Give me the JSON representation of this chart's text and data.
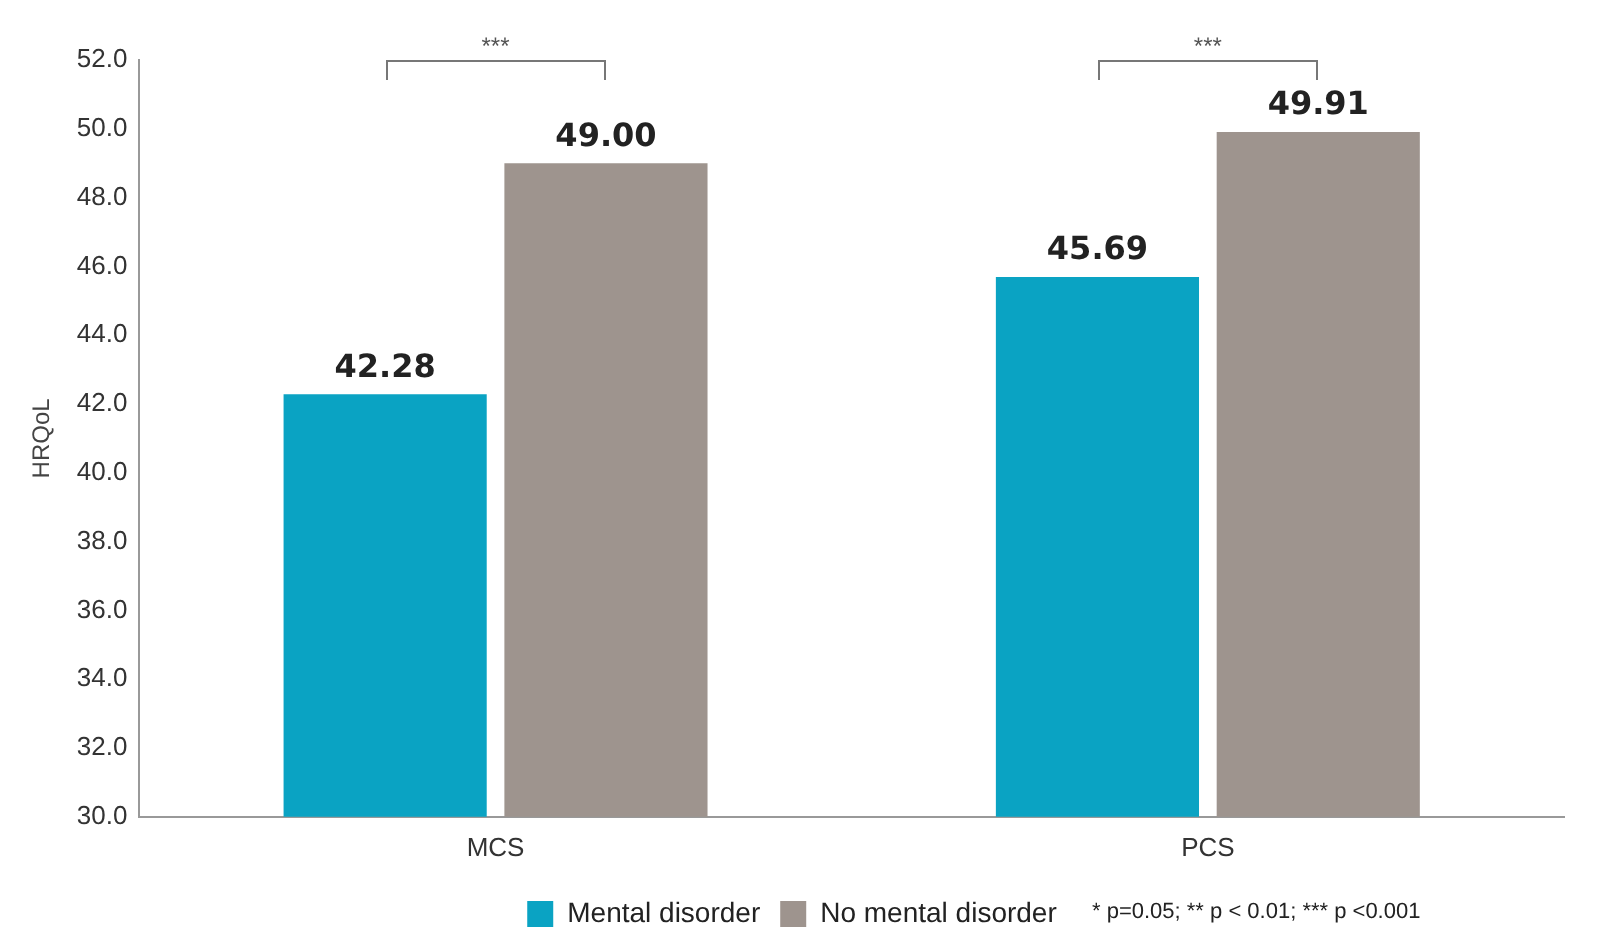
{
  "chart_data": {
    "type": "bar",
    "ylabel": "HRQoL",
    "categories": [
      "MCS",
      "PCS"
    ],
    "series": [
      {
        "name": "Mental disorder",
        "color": "#0aa3c3",
        "values": [
          42.28,
          45.69
        ],
        "value_labels": [
          "42.28",
          "45.69"
        ]
      },
      {
        "name": "No mental disorder",
        "color": "#9e948e",
        "values": [
          49.0,
          49.91
        ],
        "value_labels": [
          "49.00",
          "49.91"
        ]
      }
    ],
    "ylim": [
      30,
      52
    ],
    "yticks": [
      {
        "value": 30,
        "label": "30.0"
      },
      {
        "value": 32,
        "label": "32.0"
      },
      {
        "value": 34,
        "label": "34.0"
      },
      {
        "value": 36,
        "label": "36.0"
      },
      {
        "value": 38,
        "label": "38.0"
      },
      {
        "value": 40,
        "label": "40.0"
      },
      {
        "value": 42,
        "label": "42.0"
      },
      {
        "value": 44,
        "label": "44.0"
      },
      {
        "value": 46,
        "label": "46.0"
      },
      {
        "value": 48,
        "label": "48.0"
      },
      {
        "value": 50,
        "label": "50.0"
      },
      {
        "value": 52,
        "label": "52.0"
      }
    ],
    "grid": false,
    "legend": "bottom",
    "annotations": [
      "***",
      "***",
      "* p=0.05; ** p < 0.01; *** p <0.001"
    ]
  }
}
